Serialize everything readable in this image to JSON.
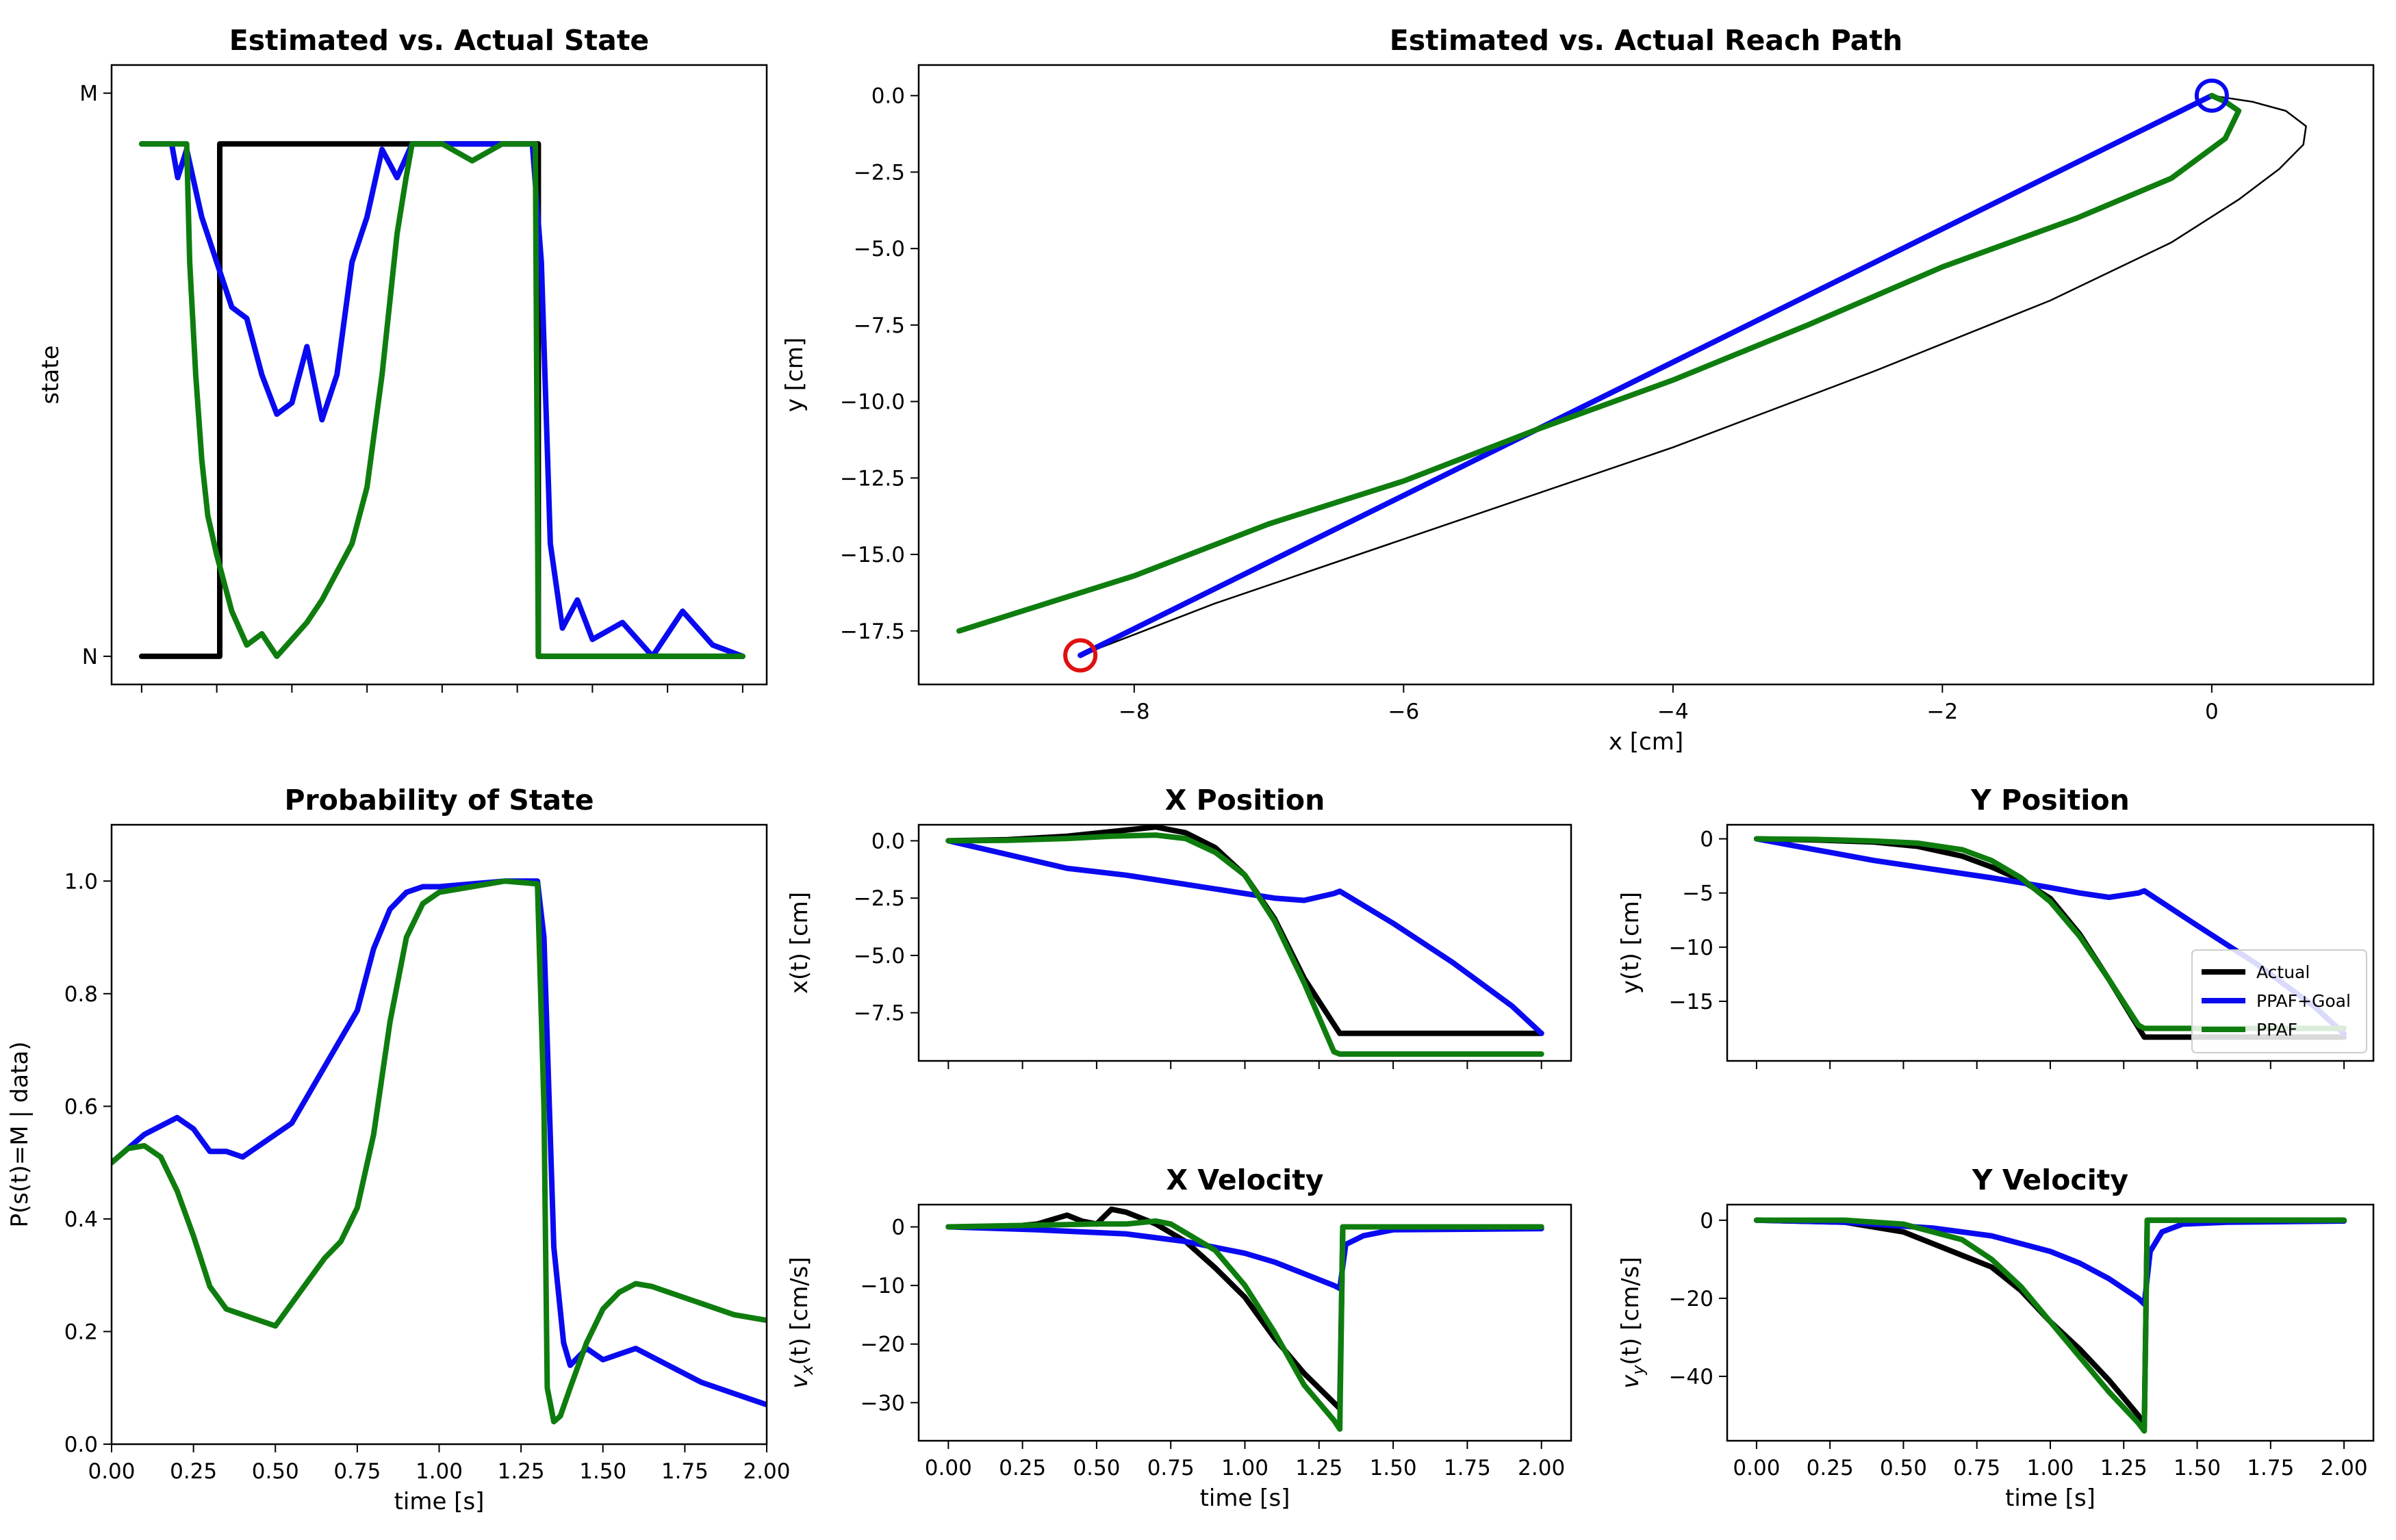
{
  "colors": {
    "actual": "#000000",
    "ppaf_goal": "#0a0af0",
    "ppaf": "#0e7d0e",
    "start_marker": "#0a0af0",
    "goal_marker": "#e01010"
  },
  "legend": [
    "Actual",
    "PPAF+Goal",
    "PPAF"
  ],
  "chart_data": [
    {
      "id": "state",
      "type": "line",
      "title": "Estimated vs. Actual State",
      "xlabel": "",
      "ylabel": "state",
      "xlim": [
        -0.1,
        2.08
      ],
      "ylim": [
        -0.05,
        1.05
      ],
      "yticks": [
        0,
        1
      ],
      "yticklabels": [
        "N",
        "M"
      ],
      "xticks": [
        0,
        0.25,
        0.5,
        0.75,
        1.0,
        1.25,
        1.5,
        1.75,
        2.0
      ],
      "xticklabels": [
        "",
        "",
        "",
        "",
        "",
        "",
        "",
        "",
        ""
      ],
      "series": [
        {
          "key": "actual",
          "x": [
            0,
            0.26,
            0.26,
            1.32,
            1.32,
            2.0
          ],
          "y": [
            0,
            0,
            0.91,
            0.91,
            0,
            0
          ]
        },
        {
          "key": "ppaf_goal",
          "x": [
            0,
            0.1,
            0.12,
            0.15,
            0.2,
            0.25,
            0.3,
            0.35,
            0.4,
            0.45,
            0.5,
            0.55,
            0.6,
            0.65,
            0.7,
            0.75,
            0.8,
            0.85,
            0.9,
            1.3,
            1.33,
            1.36,
            1.4,
            1.45,
            1.5,
            1.6,
            1.7,
            1.8,
            1.9,
            2.0
          ],
          "y": [
            0.91,
            0.91,
            0.85,
            0.9,
            0.78,
            0.7,
            0.62,
            0.6,
            0.5,
            0.43,
            0.45,
            0.55,
            0.42,
            0.5,
            0.7,
            0.78,
            0.9,
            0.85,
            0.91,
            0.91,
            0.7,
            0.2,
            0.05,
            0.1,
            0.03,
            0.06,
            0.0,
            0.08,
            0.02,
            0.0
          ]
        },
        {
          "key": "ppaf",
          "x": [
            0,
            0.15,
            0.16,
            0.18,
            0.2,
            0.22,
            0.25,
            0.3,
            0.35,
            0.4,
            0.45,
            0.5,
            0.55,
            0.6,
            0.65,
            0.7,
            0.75,
            0.8,
            0.85,
            0.88,
            0.9,
            1.0,
            1.1,
            1.2,
            1.31,
            1.32,
            2.0
          ],
          "y": [
            0.91,
            0.91,
            0.7,
            0.5,
            0.35,
            0.25,
            0.18,
            0.08,
            0.02,
            0.04,
            0.0,
            0.03,
            0.06,
            0.1,
            0.15,
            0.2,
            0.3,
            0.5,
            0.75,
            0.85,
            0.91,
            0.91,
            0.88,
            0.91,
            0.91,
            0.0,
            0.0
          ]
        }
      ]
    },
    {
      "id": "path",
      "type": "line",
      "title": "Estimated vs. Actual Reach Path",
      "xlabel": "x [cm]",
      "ylabel": "y [cm]",
      "xlim": [
        -9.6,
        1.2
      ],
      "ylim": [
        -19.25,
        1.0
      ],
      "xticks": [
        -8,
        -6,
        -4,
        -2,
        0
      ],
      "xticklabels": [
        "−8",
        "−6",
        "−4",
        "−2",
        "0"
      ],
      "yticks": [
        0,
        -2.5,
        -5,
        -7.5,
        -10,
        -12.5,
        -15,
        -17.5
      ],
      "yticklabels": [
        "0.0",
        "−2.5",
        "−5.0",
        "−7.5",
        "−10.0",
        "−12.5",
        "−15.0",
        "−17.5"
      ],
      "series": [
        {
          "key": "actual",
          "thin": true,
          "x": [
            0,
            0.3,
            0.55,
            0.7,
            0.68,
            0.5,
            0.2,
            -0.3,
            -1.2,
            -2.5,
            -4.0,
            -5.8,
            -7.4,
            -8.4
          ],
          "y": [
            0,
            -0.2,
            -0.5,
            -1.0,
            -1.6,
            -2.4,
            -3.4,
            -4.8,
            -6.7,
            -9.0,
            -11.5,
            -14.2,
            -16.6,
            -18.3
          ]
        },
        {
          "key": "ppaf_goal",
          "x": [
            0,
            -8.4
          ],
          "y": [
            0,
            -18.3
          ]
        },
        {
          "key": "ppaf",
          "x": [
            0,
            0.1,
            0.2,
            0.1,
            -0.3,
            -1.0,
            -2.0,
            -3.0,
            -4.0,
            -5.0,
            -6.0,
            -7.0,
            -8.0,
            -9.3
          ],
          "y": [
            0,
            -0.2,
            -0.5,
            -1.4,
            -2.7,
            -4.0,
            -5.6,
            -7.5,
            -9.3,
            -10.9,
            -12.6,
            -14.0,
            -15.7,
            -17.5
          ]
        }
      ],
      "markers": [
        {
          "key": "start_marker",
          "x": 0,
          "y": 0
        },
        {
          "key": "goal_marker",
          "x": -8.4,
          "y": -18.3
        }
      ]
    },
    {
      "id": "prob",
      "type": "line",
      "title": "Probability of State",
      "xlabel": "time [s]",
      "ylabel": "P(s(t)=M | data)",
      "xlim": [
        0,
        2.0
      ],
      "ylim": [
        0,
        1.1
      ],
      "xticks": [
        0,
        0.25,
        0.5,
        0.75,
        1.0,
        1.25,
        1.5,
        1.75,
        2.0
      ],
      "xticklabels": [
        "0.00",
        "0.25",
        "0.50",
        "0.75",
        "1.00",
        "1.25",
        "1.50",
        "1.75",
        "2.00"
      ],
      "yticks": [
        0,
        0.2,
        0.4,
        0.6,
        0.8,
        1.0
      ],
      "yticklabels": [
        "0.0",
        "0.2",
        "0.4",
        "0.6",
        "0.8",
        "1.0"
      ],
      "series": [
        {
          "key": "ppaf_goal",
          "x": [
            0,
            0.1,
            0.2,
            0.25,
            0.3,
            0.35,
            0.4,
            0.45,
            0.5,
            0.55,
            0.6,
            0.65,
            0.7,
            0.75,
            0.8,
            0.85,
            0.9,
            0.95,
            1.0,
            1.1,
            1.2,
            1.3,
            1.32,
            1.35,
            1.38,
            1.4,
            1.45,
            1.5,
            1.6,
            1.7,
            1.8,
            1.9,
            2.0
          ],
          "y": [
            0.5,
            0.55,
            0.58,
            0.56,
            0.52,
            0.52,
            0.51,
            0.53,
            0.55,
            0.57,
            0.62,
            0.67,
            0.72,
            0.77,
            0.88,
            0.95,
            0.98,
            0.99,
            0.99,
            0.995,
            1.0,
            1.0,
            0.9,
            0.35,
            0.18,
            0.14,
            0.17,
            0.15,
            0.17,
            0.14,
            0.11,
            0.09,
            0.07
          ]
        },
        {
          "key": "ppaf",
          "x": [
            0,
            0.05,
            0.1,
            0.15,
            0.2,
            0.25,
            0.3,
            0.35,
            0.4,
            0.45,
            0.5,
            0.55,
            0.6,
            0.65,
            0.7,
            0.75,
            0.8,
            0.85,
            0.9,
            0.95,
            1.0,
            1.1,
            1.2,
            1.3,
            1.32,
            1.33,
            1.35,
            1.37,
            1.4,
            1.45,
            1.5,
            1.55,
            1.6,
            1.65,
            1.7,
            1.8,
            1.9,
            2.0
          ],
          "y": [
            0.5,
            0.525,
            0.53,
            0.51,
            0.45,
            0.37,
            0.28,
            0.24,
            0.23,
            0.22,
            0.21,
            0.25,
            0.29,
            0.33,
            0.36,
            0.42,
            0.55,
            0.75,
            0.9,
            0.96,
            0.98,
            0.99,
            1.0,
            0.995,
            0.6,
            0.1,
            0.04,
            0.05,
            0.1,
            0.18,
            0.24,
            0.27,
            0.285,
            0.28,
            0.27,
            0.25,
            0.23,
            0.22
          ]
        }
      ]
    },
    {
      "id": "xpos",
      "type": "line",
      "title": "X Position",
      "xlabel": "",
      "ylabel": "x(t) [cm]",
      "xlim": [
        -0.1,
        2.1
      ],
      "ylim": [
        -9.6,
        0.7
      ],
      "xticks": [
        0,
        0.25,
        0.5,
        0.75,
        1.0,
        1.25,
        1.5,
        1.75,
        2.0
      ],
      "xticklabels": [
        "",
        "",
        "",
        "",
        "",
        "",
        "",
        "",
        ""
      ],
      "yticks": [
        0,
        -2.5,
        -5,
        -7.5
      ],
      "yticklabels": [
        "0.0",
        "−2.5",
        "−5.0",
        "−7.5"
      ],
      "series": [
        {
          "key": "actual",
          "x": [
            0,
            0.2,
            0.4,
            0.55,
            0.7,
            0.8,
            0.9,
            1.0,
            1.1,
            1.2,
            1.32,
            1.5,
            2.0
          ],
          "y": [
            0,
            0.05,
            0.2,
            0.4,
            0.6,
            0.35,
            -0.3,
            -1.5,
            -3.4,
            -6.0,
            -8.4,
            -8.4,
            -8.4
          ]
        },
        {
          "key": "ppaf_goal",
          "x": [
            0,
            0.2,
            0.4,
            0.6,
            0.8,
            1.0,
            1.1,
            1.2,
            1.3,
            1.32,
            1.5,
            1.7,
            1.9,
            2.0
          ],
          "y": [
            0,
            -0.6,
            -1.2,
            -1.5,
            -1.9,
            -2.3,
            -2.5,
            -2.6,
            -2.3,
            -2.2,
            -3.6,
            -5.3,
            -7.2,
            -8.4
          ]
        },
        {
          "key": "ppaf",
          "x": [
            0,
            0.2,
            0.4,
            0.55,
            0.7,
            0.8,
            0.9,
            1.0,
            1.1,
            1.2,
            1.3,
            1.32,
            1.5,
            2.0
          ],
          "y": [
            0,
            0.02,
            0.1,
            0.2,
            0.25,
            0.1,
            -0.5,
            -1.5,
            -3.5,
            -6.2,
            -9.2,
            -9.3,
            -9.3,
            -9.3
          ]
        }
      ]
    },
    {
      "id": "ypos",
      "type": "line",
      "title": "Y Position",
      "xlabel": "",
      "ylabel": "y(t) [cm]",
      "xlim": [
        -0.1,
        2.1
      ],
      "ylim": [
        -20.5,
        1.3
      ],
      "xticks": [
        0,
        0.25,
        0.5,
        0.75,
        1.0,
        1.25,
        1.5,
        1.75,
        2.0
      ],
      "xticklabels": [
        "",
        "",
        "",
        "",
        "",
        "",
        "",
        "",
        ""
      ],
      "yticks": [
        0,
        -5,
        -10,
        -15
      ],
      "yticklabels": [
        "0",
        "−5",
        "−10",
        "−15"
      ],
      "series": [
        {
          "key": "actual",
          "x": [
            0,
            0.2,
            0.4,
            0.55,
            0.7,
            0.8,
            0.9,
            1.0,
            1.1,
            1.2,
            1.32,
            1.5,
            2.0
          ],
          "y": [
            0,
            -0.1,
            -0.3,
            -0.7,
            -1.6,
            -2.6,
            -3.8,
            -5.5,
            -8.8,
            -13.0,
            -18.3,
            -18.3,
            -18.3
          ]
        },
        {
          "key": "ppaf_goal",
          "x": [
            0,
            0.2,
            0.4,
            0.6,
            0.8,
            1.0,
            1.1,
            1.2,
            1.3,
            1.32,
            1.5,
            1.7,
            1.9,
            2.0
          ],
          "y": [
            0,
            -1.0,
            -2.0,
            -2.8,
            -3.6,
            -4.5,
            -5.0,
            -5.4,
            -5.0,
            -4.8,
            -8.0,
            -11.5,
            -15.5,
            -18.0
          ]
        },
        {
          "key": "ppaf",
          "x": [
            0,
            0.2,
            0.4,
            0.55,
            0.7,
            0.8,
            0.9,
            1.0,
            1.1,
            1.2,
            1.3,
            1.32,
            1.5,
            2.0
          ],
          "y": [
            0,
            -0.05,
            -0.2,
            -0.4,
            -1.0,
            -2.0,
            -3.6,
            -5.8,
            -9.0,
            -13.0,
            -17.2,
            -17.5,
            -17.5,
            -17.5
          ]
        }
      ],
      "legend_loc": "lower-right"
    },
    {
      "id": "xvel",
      "type": "line",
      "title": "X Velocity",
      "xlabel": "time [s]",
      "ylabel": "v_x(t) [cm/s]",
      "xlim": [
        -0.1,
        2.1
      ],
      "ylim": [
        -36.5,
        3.8
      ],
      "xticks": [
        0,
        0.25,
        0.5,
        0.75,
        1.0,
        1.25,
        1.5,
        1.75,
        2.0
      ],
      "xticklabels": [
        "0.00",
        "0.25",
        "0.50",
        "0.75",
        "1.00",
        "1.25",
        "1.50",
        "1.75",
        "2.00"
      ],
      "yticks": [
        0,
        -10,
        -20,
        -30
      ],
      "yticklabels": [
        "0",
        "−10",
        "−20",
        "−30"
      ],
      "series": [
        {
          "key": "actual",
          "x": [
            0,
            0.2,
            0.3,
            0.4,
            0.45,
            0.5,
            0.55,
            0.6,
            0.7,
            0.8,
            0.9,
            1.0,
            1.1,
            1.2,
            1.3,
            1.32,
            1.33,
            1.5,
            2.0
          ],
          "y": [
            0,
            0,
            0.5,
            2,
            1,
            0.5,
            3,
            2.5,
            0.5,
            -2.5,
            -7,
            -12,
            -19,
            -25,
            -30,
            -31,
            0,
            0,
            0
          ]
        },
        {
          "key": "ppaf_goal",
          "x": [
            0,
            0.3,
            0.6,
            0.8,
            1.0,
            1.1,
            1.2,
            1.3,
            1.32,
            1.34,
            1.4,
            1.5,
            2.0
          ],
          "y": [
            0,
            -0.5,
            -1.2,
            -2.5,
            -4.5,
            -6,
            -8,
            -10,
            -10.5,
            -3,
            -1.5,
            -0.5,
            -0.3
          ]
        },
        {
          "key": "ppaf",
          "x": [
            0,
            0.3,
            0.5,
            0.6,
            0.7,
            0.75,
            0.8,
            0.9,
            1.0,
            1.1,
            1.2,
            1.3,
            1.32,
            1.33,
            1.5,
            2.0
          ],
          "y": [
            0,
            0.3,
            0.5,
            0.5,
            1,
            0.5,
            -1,
            -4,
            -10,
            -18,
            -27,
            -33,
            -34.5,
            0,
            0,
            0
          ]
        }
      ]
    },
    {
      "id": "yvel",
      "type": "line",
      "title": "Y Velocity",
      "xlabel": "time [s]",
      "ylabel": "v_y(t) [cm/s]",
      "xlim": [
        -0.1,
        2.1
      ],
      "ylim": [
        -56.5,
        4.0
      ],
      "xticks": [
        0,
        0.25,
        0.5,
        0.75,
        1.0,
        1.25,
        1.5,
        1.75,
        2.0
      ],
      "xticklabels": [
        "0.00",
        "0.25",
        "0.50",
        "0.75",
        "1.00",
        "1.25",
        "1.50",
        "1.75",
        "2.00"
      ],
      "yticks": [
        0,
        -20,
        -40
      ],
      "yticklabels": [
        "0",
        "−20",
        "−40"
      ],
      "series": [
        {
          "key": "actual",
          "x": [
            0,
            0.3,
            0.5,
            0.6,
            0.7,
            0.8,
            0.9,
            1.0,
            1.1,
            1.2,
            1.3,
            1.32,
            1.33,
            1.5,
            2.0
          ],
          "y": [
            0,
            -0.5,
            -3,
            -6,
            -9,
            -12,
            -18,
            -26,
            -33,
            -41,
            -50,
            -53,
            0,
            0,
            0
          ]
        },
        {
          "key": "ppaf_goal",
          "x": [
            0,
            0.3,
            0.6,
            0.8,
            1.0,
            1.1,
            1.2,
            1.3,
            1.32,
            1.34,
            1.38,
            1.45,
            1.6,
            2.0
          ],
          "y": [
            0,
            -0.5,
            -2,
            -4,
            -8,
            -11,
            -15,
            -20,
            -21.5,
            -8,
            -3,
            -1,
            -0.5,
            -0.2
          ]
        },
        {
          "key": "ppaf",
          "x": [
            0,
            0.3,
            0.5,
            0.6,
            0.7,
            0.8,
            0.9,
            1.0,
            1.1,
            1.2,
            1.3,
            1.32,
            1.33,
            1.5,
            2.0
          ],
          "y": [
            0,
            0,
            -1,
            -3,
            -5,
            -10,
            -17,
            -26,
            -35,
            -44,
            -52,
            -54,
            0,
            0,
            0
          ]
        }
      ]
    }
  ]
}
